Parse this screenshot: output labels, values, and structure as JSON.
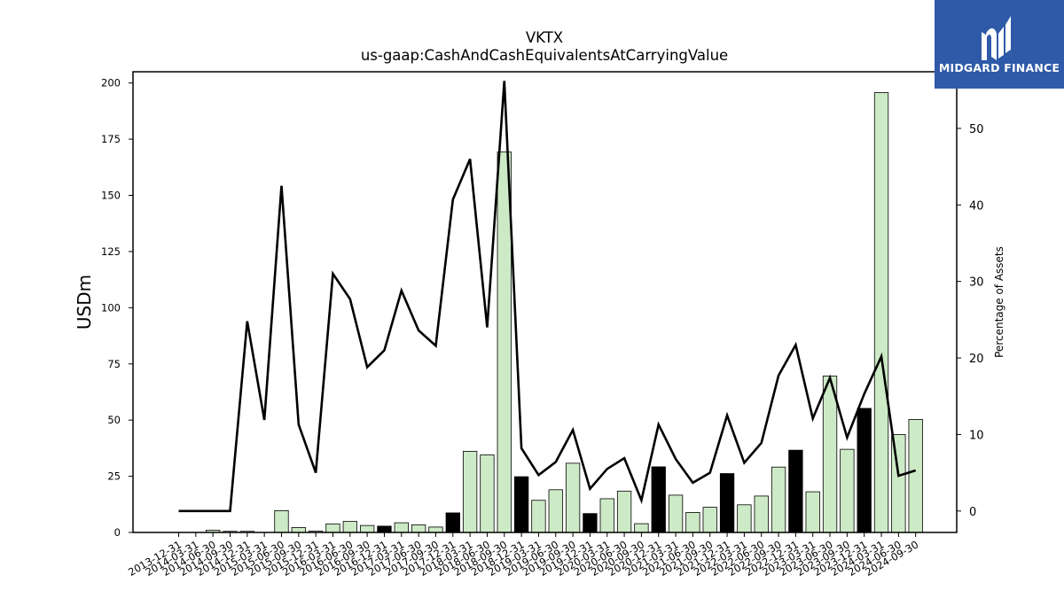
{
  "branding": {
    "name": "MIDGARD FINANCE"
  },
  "chart_data": {
    "type": "bar",
    "title": "VKTX",
    "subtitle": "us-gaap:CashAndCashEquivalentsAtCarryingValue",
    "ylabel": "USDm",
    "y2label": "Percentage of Assets",
    "ylim": [
      0,
      205
    ],
    "y2lim": [
      -2.8,
      57.4
    ],
    "yticks": [
      0,
      25,
      50,
      75,
      100,
      125,
      150,
      175,
      200
    ],
    "y2ticks": [
      0,
      10,
      20,
      30,
      40,
      50
    ],
    "categories": [
      "2013-12-31",
      "2014-03-31",
      "2014-06-30",
      "2014-09-30",
      "2014-12-31",
      "2015-03-31",
      "2015-06-30",
      "2015-09-30",
      "2015-12-31",
      "2016-03-31",
      "2016-06-30",
      "2016-09-30",
      "2016-12-31",
      "2017-03-31",
      "2017-06-30",
      "2017-09-30",
      "2017-12-31",
      "2018-03-31",
      "2018-06-30",
      "2018-09-30",
      "2018-12-31",
      "2019-03-31",
      "2019-06-30",
      "2019-09-30",
      "2019-12-31",
      "2020-03-31",
      "2020-06-30",
      "2020-09-30",
      "2020-12-31",
      "2021-03-31",
      "2021-06-30",
      "2021-09-30",
      "2021-12-31",
      "2022-03-31",
      "2022-06-30",
      "2022-09-30",
      "2022-12-31",
      "2023-03-31",
      "2023-06-30",
      "2023-09-30",
      "2023-12-31",
      "2024-03-31",
      "2024-06-30",
      "2024-09-30"
    ],
    "series": [
      {
        "kind": "bar",
        "values": [
          0,
          0,
          1,
          0.5,
          0.5,
          0,
          9.7,
          2.2,
          0.6,
          3.8,
          4.9,
          3.1,
          2.8,
          4.3,
          3.4,
          2.4,
          8.7,
          36.1,
          34.5,
          169.3,
          24.8,
          14.3,
          19.0,
          30.8,
          8.4,
          15.0,
          18.4,
          3.9,
          29.2,
          16.6,
          8.9,
          11.2,
          26.2,
          12.3,
          16.2,
          29.1,
          36.6,
          18.1,
          69.6,
          37.0,
          55.2,
          195.7,
          43.6,
          50.3
        ],
        "fill_colors": [
          "#cdeac6",
          "#cdeac6",
          "#cdeac6",
          "#cdeac6",
          "#cdeac6",
          "#cdeac6",
          "#cdeac6",
          "#cdeac6",
          "#cdeac6",
          "#cdeac6",
          "#cdeac6",
          "#cdeac6",
          "#000000",
          "#cdeac6",
          "#cdeac6",
          "#cdeac6",
          "#000000",
          "#cdeac6",
          "#cdeac6",
          "#cdeac6",
          "#000000",
          "#cdeac6",
          "#cdeac6",
          "#cdeac6",
          "#000000",
          "#cdeac6",
          "#cdeac6",
          "#cdeac6",
          "#000000",
          "#cdeac6",
          "#cdeac6",
          "#cdeac6",
          "#000000",
          "#cdeac6",
          "#cdeac6",
          "#cdeac6",
          "#000000",
          "#cdeac6",
          "#cdeac6",
          "#cdeac6",
          "#000000",
          "#cdeac6",
          "#cdeac6",
          "#cdeac6"
        ]
      },
      {
        "kind": "line",
        "axis": "right",
        "values": [
          0,
          0,
          0,
          0,
          24.8,
          11.9,
          42.5,
          11.3,
          5.0,
          31.0,
          27.7,
          18.8,
          21.0,
          28.8,
          23.6,
          21.6,
          40.7,
          46.0,
          24.0,
          56.2,
          8.2,
          4.7,
          6.4,
          10.6,
          2.9,
          5.5,
          6.9,
          1.4,
          11.3,
          6.8,
          3.7,
          5.0,
          12.5,
          6.3,
          8.9,
          17.7,
          21.7,
          12.1,
          17.4,
          9.6,
          15.3,
          20.2,
          4.6,
          5.3
        ]
      }
    ],
    "grid": false,
    "legend": "none"
  }
}
